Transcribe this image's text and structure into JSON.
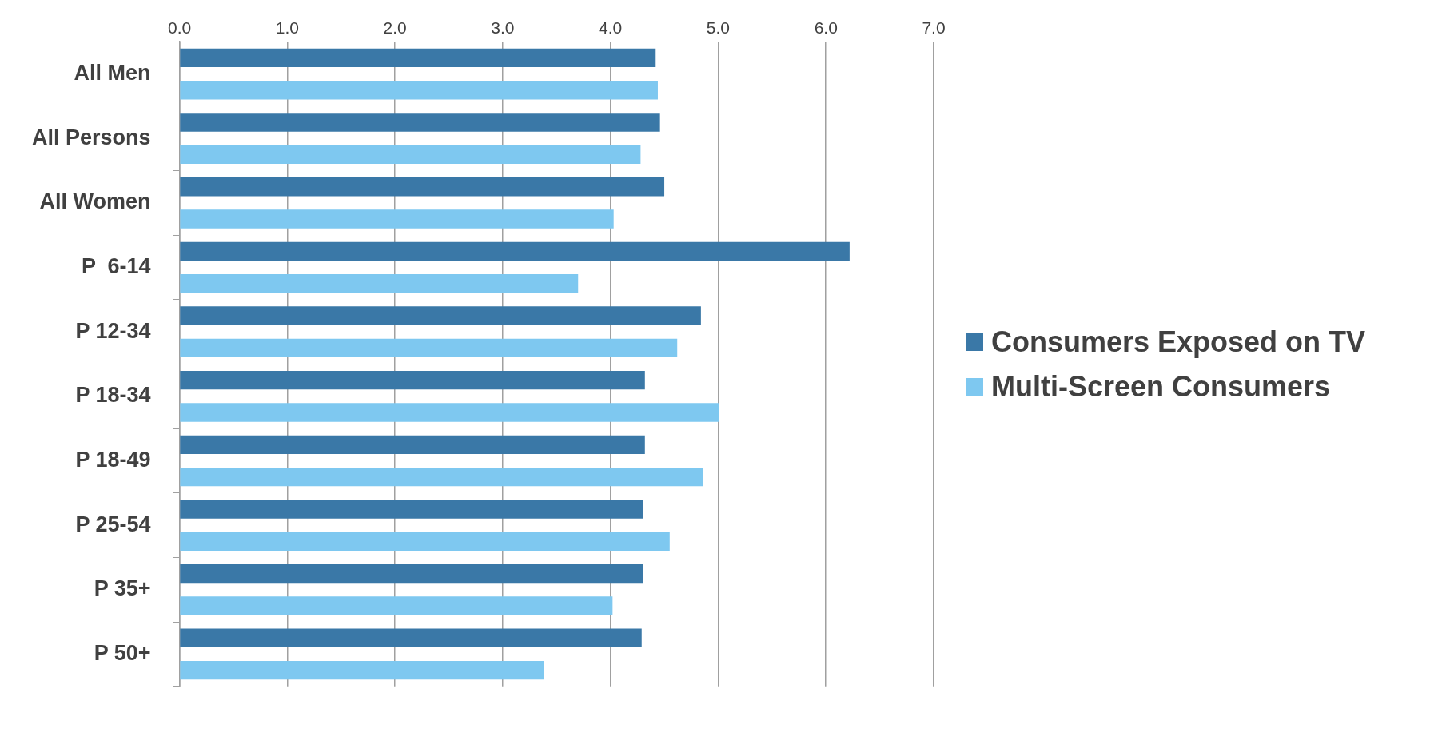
{
  "chart_data": {
    "type": "bar",
    "orientation": "horizontal",
    "categories": [
      "All Men",
      "All Persons",
      "All Women",
      "P  6-14",
      "P 12-34",
      "P 18-34",
      "P 18-49",
      "P 25-54",
      "P 35+",
      "P 50+"
    ],
    "series": [
      {
        "name": "Consumers Exposed on TV",
        "color": "#3a78a7",
        "values": [
          4.42,
          4.46,
          4.5,
          6.22,
          4.84,
          4.32,
          4.32,
          4.3,
          4.3,
          4.29
        ]
      },
      {
        "name": "Multi-Screen Consumers",
        "color": "#7ec8f0",
        "values": [
          4.44,
          4.28,
          4.03,
          3.7,
          4.62,
          5.01,
          4.86,
          4.55,
          4.02,
          3.38
        ]
      }
    ],
    "xlim": [
      0,
      7
    ],
    "xticks": [
      {
        "value": 0,
        "label": "0.0"
      },
      {
        "value": 1,
        "label": "1.0"
      },
      {
        "value": 2,
        "label": "2.0"
      },
      {
        "value": 3,
        "label": "3.0"
      },
      {
        "value": 4,
        "label": "4.0"
      },
      {
        "value": 5,
        "label": "5.0"
      },
      {
        "value": 6,
        "label": "6.0"
      },
      {
        "value": 7,
        "label": "7.0"
      }
    ],
    "grid": "x",
    "legend": "right"
  }
}
